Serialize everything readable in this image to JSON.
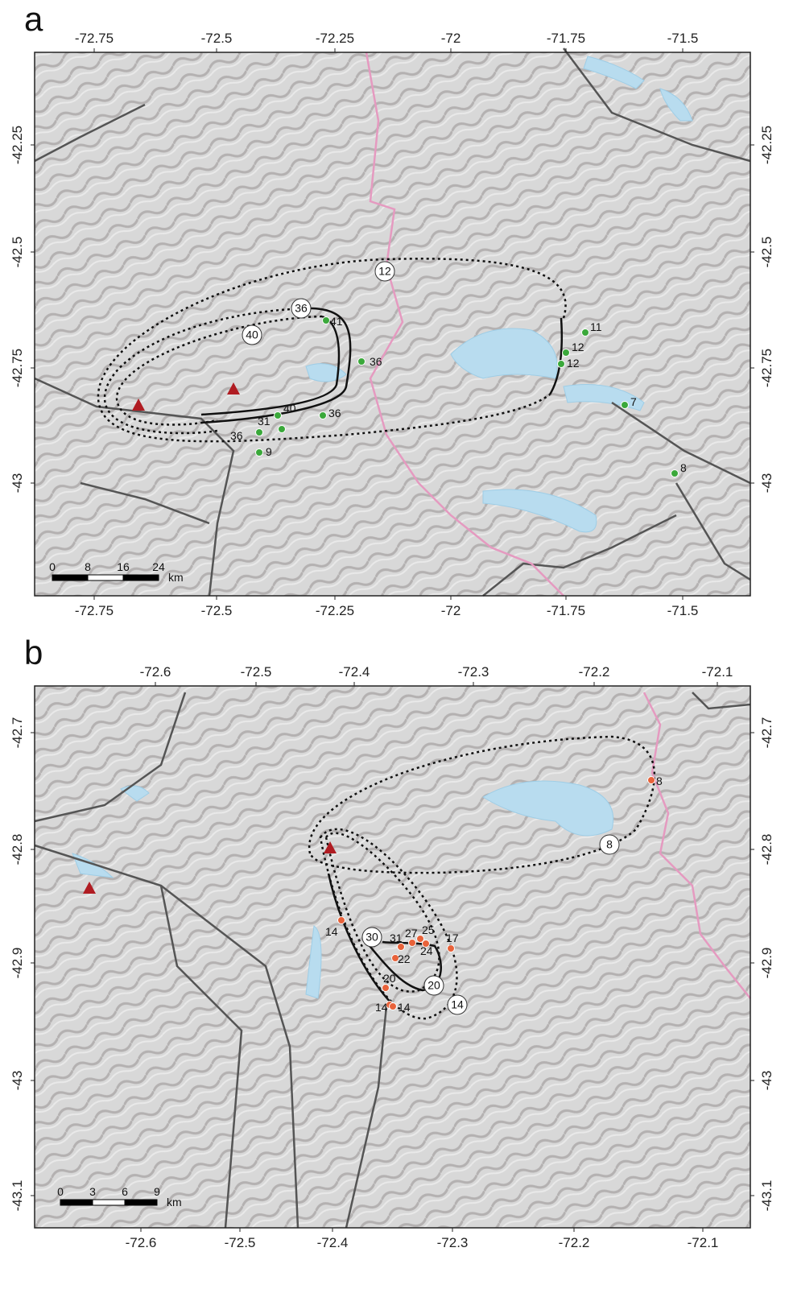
{
  "panels": [
    {
      "label": "a",
      "ticks": {
        "top": [
          "-72.75",
          "-72.5",
          "-72.25",
          "-72",
          "-71.75",
          "-71.5"
        ],
        "bottom": [
          "-72.75",
          "-72.5",
          "-72.25",
          "-72",
          "-71.75",
          "-71.5"
        ],
        "left": [
          "-42.25",
          "-42.5",
          "-42.75",
          "-43"
        ],
        "right": [
          "-42.25",
          "-42.5",
          "-42.75",
          "-43"
        ]
      },
      "scale_bar": {
        "labels": [
          "0",
          "8",
          "16",
          "24"
        ],
        "unit": "km"
      },
      "isopachs": [
        "12",
        "36",
        "40"
      ],
      "samples": [
        "41",
        "36",
        "11",
        "12",
        "12",
        "7",
        "8",
        "40",
        "36",
        "31",
        "36",
        "9"
      ]
    },
    {
      "label": "b",
      "ticks": {
        "top": [
          "-72.6",
          "-72.5",
          "-72.4",
          "-72.3",
          "-72.2",
          "-72.1"
        ],
        "bottom": [
          "-72.6",
          "-72.5",
          "-72.4",
          "-72.3",
          "-72.2",
          "-72.1"
        ],
        "left": [
          "-42.7",
          "-42.8",
          "-42.9",
          "-43",
          "-43.1"
        ],
        "right": [
          "-42.7",
          "-42.8",
          "-42.9",
          "-43",
          "-43.1"
        ]
      },
      "scale_bar": {
        "labels": [
          "0",
          "3",
          "6",
          "9"
        ],
        "unit": "km"
      },
      "isopachs": [
        "8",
        "30",
        "20",
        "14"
      ],
      "samples": [
        "8",
        "14",
        "31",
        "27",
        "25",
        "24",
        "17",
        "22",
        "20",
        "14",
        "14"
      ]
    }
  ]
}
